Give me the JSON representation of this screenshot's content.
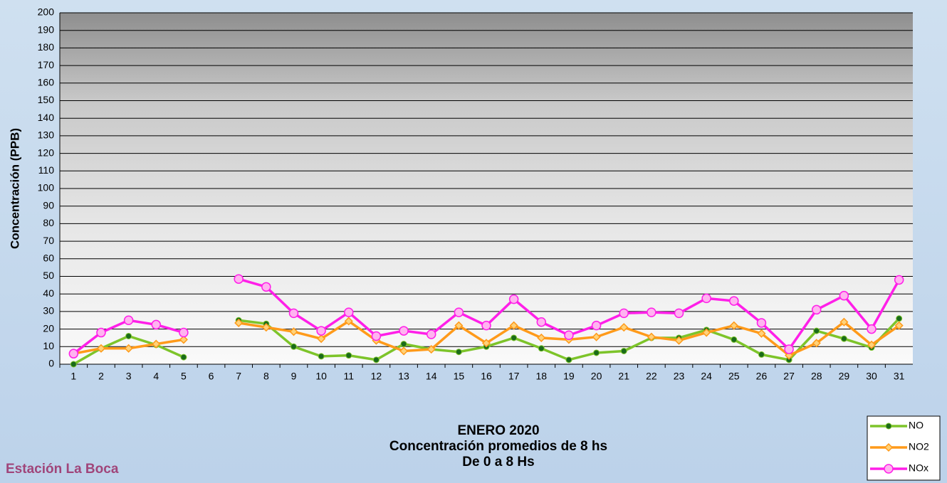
{
  "chart_data": {
    "type": "line",
    "title": [
      "ENERO 2020",
      "Concentración promedios de 8 hs",
      "De 0 a 8 Hs"
    ],
    "station": "Estación La Boca",
    "y_label": "Concentración  (PPB)",
    "categories": [
      "1",
      "2",
      "3",
      "4",
      "5",
      "6",
      "7",
      "8",
      "9",
      "10",
      "11",
      "12",
      "13",
      "14",
      "15",
      "16",
      "17",
      "18",
      "19",
      "20",
      "21",
      "22",
      "23",
      "24",
      "25",
      "26",
      "27",
      "28",
      "29",
      "30",
      "31"
    ],
    "series": [
      {
        "name": "NO",
        "color": "#7dc42a",
        "marker": "dot",
        "values": [
          0,
          9,
          16,
          11,
          4,
          null,
          25,
          23,
          10,
          4.5,
          5,
          2.5,
          11.5,
          8.5,
          7,
          10,
          15,
          9,
          2.5,
          6.5,
          7.5,
          15,
          15,
          19.5,
          14,
          5.5,
          2.5,
          19,
          14.5,
          9.5,
          26
        ]
      },
      {
        "name": "NO2",
        "color": "#ff9a1a",
        "marker": "diamond",
        "values": [
          6,
          9,
          9,
          11.5,
          14,
          null,
          23.5,
          21,
          18.5,
          14.5,
          24.5,
          13.5,
          7.5,
          8.5,
          22,
          12,
          22,
          15,
          14,
          15.5,
          21,
          15.5,
          13.5,
          18,
          22,
          17.5,
          5,
          12,
          24,
          11,
          22
        ]
      },
      {
        "name": "NOx",
        "color": "#ff1fe8",
        "marker": "circle",
        "values": [
          6,
          18,
          25,
          22.5,
          18,
          null,
          48.5,
          44,
          29,
          19,
          29.5,
          16,
          19,
          17,
          29.5,
          22,
          37,
          24,
          16.5,
          22,
          29,
          29.5,
          29,
          37.5,
          36,
          23.5,
          8.5,
          31,
          39,
          20,
          48
        ]
      }
    ],
    "ylim": [
      0,
      200
    ],
    "yticks": [
      0,
      10,
      20,
      30,
      40,
      50,
      60,
      70,
      80,
      90,
      100,
      110,
      120,
      130,
      140,
      150,
      160,
      170,
      180,
      190,
      200
    ],
    "grid": true,
    "legend": "bottom-right"
  }
}
